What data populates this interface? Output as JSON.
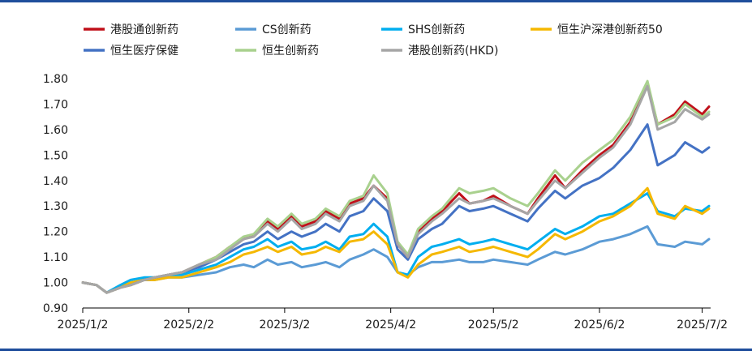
{
  "chart_data": {
    "type": "line",
    "title": "",
    "xlabel": "",
    "ylabel": "",
    "ylim": [
      0.9,
      1.8
    ],
    "yticks": [
      "0.90",
      "1.00",
      "1.10",
      "1.20",
      "1.30",
      "1.40",
      "1.50",
      "1.60",
      "1.70",
      "1.80"
    ],
    "xticks": [
      "2025/1/2",
      "2025/2/2",
      "2025/3/2",
      "2025/4/2",
      "2025/5/2",
      "2025/6/2",
      "2025/7/2"
    ],
    "grid": false,
    "legend_position": "top",
    "x": [
      "2025/1/2",
      "2025/1/6",
      "2025/1/9",
      "2025/1/13",
      "2025/1/16",
      "2025/1/20",
      "2025/1/23",
      "2025/1/27",
      "2025/1/31",
      "2025/2/5",
      "2025/2/10",
      "2025/2/14",
      "2025/2/18",
      "2025/2/21",
      "2025/2/25",
      "2025/2/28",
      "2025/3/4",
      "2025/3/7",
      "2025/3/11",
      "2025/3/14",
      "2025/3/18",
      "2025/3/21",
      "2025/3/25",
      "2025/3/28",
      "2025/4/1",
      "2025/4/4",
      "2025/4/7",
      "2025/4/10",
      "2025/4/14",
      "2025/4/17",
      "2025/4/22",
      "2025/4/25",
      "2025/4/29",
      "2025/5/2",
      "2025/5/7",
      "2025/5/12",
      "2025/5/15",
      "2025/5/20",
      "2025/5/23",
      "2025/5/28",
      "2025/6/2",
      "2025/6/6",
      "2025/6/11",
      "2025/6/16",
      "2025/6/19",
      "2025/6/24",
      "2025/6/27",
      "2025/7/2",
      "2025/7/4"
    ],
    "series": [
      {
        "name": "港股通创新药",
        "color": "#c0101a",
        "values": [
          1.0,
          0.99,
          0.96,
          0.98,
          0.99,
          1.01,
          1.02,
          1.03,
          1.04,
          1.07,
          1.1,
          1.14,
          1.17,
          1.19,
          1.24,
          1.21,
          1.26,
          1.22,
          1.24,
          1.28,
          1.25,
          1.31,
          1.33,
          1.38,
          1.33,
          1.15,
          1.1,
          1.2,
          1.25,
          1.28,
          1.35,
          1.31,
          1.32,
          1.34,
          1.3,
          1.27,
          1.33,
          1.42,
          1.37,
          1.44,
          1.5,
          1.54,
          1.63,
          1.78,
          1.62,
          1.66,
          1.71,
          1.66,
          1.69
        ]
      },
      {
        "name": "CS创新药",
        "color": "#5b9bd5",
        "values": [
          1.0,
          0.99,
          0.96,
          0.98,
          1.0,
          1.01,
          1.01,
          1.02,
          1.02,
          1.03,
          1.04,
          1.06,
          1.07,
          1.06,
          1.09,
          1.07,
          1.08,
          1.06,
          1.07,
          1.08,
          1.06,
          1.09,
          1.11,
          1.13,
          1.1,
          1.04,
          1.03,
          1.06,
          1.08,
          1.08,
          1.09,
          1.08,
          1.08,
          1.09,
          1.08,
          1.07,
          1.09,
          1.12,
          1.11,
          1.13,
          1.16,
          1.17,
          1.19,
          1.22,
          1.15,
          1.14,
          1.16,
          1.15,
          1.17
        ]
      },
      {
        "name": "SHS创新药",
        "color": "#00aeef",
        "values": [
          1.0,
          0.99,
          0.96,
          0.99,
          1.01,
          1.02,
          1.02,
          1.03,
          1.03,
          1.05,
          1.07,
          1.1,
          1.13,
          1.14,
          1.17,
          1.14,
          1.16,
          1.13,
          1.14,
          1.16,
          1.13,
          1.18,
          1.19,
          1.23,
          1.18,
          1.04,
          1.03,
          1.1,
          1.14,
          1.15,
          1.17,
          1.15,
          1.16,
          1.17,
          1.15,
          1.13,
          1.16,
          1.21,
          1.19,
          1.22,
          1.26,
          1.27,
          1.31,
          1.35,
          1.28,
          1.26,
          1.29,
          1.28,
          1.3
        ]
      },
      {
        "name": "恒生沪深港创新药50",
        "color": "#f5b800",
        "values": [
          1.0,
          0.99,
          0.96,
          0.98,
          1.0,
          1.01,
          1.01,
          1.02,
          1.02,
          1.04,
          1.06,
          1.08,
          1.11,
          1.12,
          1.14,
          1.12,
          1.14,
          1.11,
          1.12,
          1.14,
          1.12,
          1.16,
          1.17,
          1.2,
          1.15,
          1.04,
          1.02,
          1.07,
          1.11,
          1.12,
          1.14,
          1.12,
          1.13,
          1.14,
          1.12,
          1.1,
          1.13,
          1.19,
          1.17,
          1.2,
          1.24,
          1.26,
          1.3,
          1.37,
          1.27,
          1.25,
          1.3,
          1.27,
          1.29
        ]
      },
      {
        "name": "恒生医疗保健",
        "color": "#4472c4",
        "values": [
          1.0,
          0.99,
          0.96,
          0.98,
          0.99,
          1.01,
          1.02,
          1.03,
          1.04,
          1.06,
          1.09,
          1.12,
          1.15,
          1.16,
          1.2,
          1.17,
          1.2,
          1.18,
          1.2,
          1.23,
          1.2,
          1.26,
          1.28,
          1.33,
          1.28,
          1.13,
          1.09,
          1.17,
          1.21,
          1.23,
          1.3,
          1.28,
          1.29,
          1.3,
          1.27,
          1.24,
          1.29,
          1.36,
          1.33,
          1.38,
          1.41,
          1.45,
          1.52,
          1.62,
          1.46,
          1.5,
          1.55,
          1.51,
          1.53
        ]
      },
      {
        "name": "恒生创新药",
        "color": "#a9d18e",
        "values": [
          1.0,
          0.99,
          0.96,
          0.98,
          0.99,
          1.01,
          1.02,
          1.03,
          1.04,
          1.07,
          1.1,
          1.14,
          1.18,
          1.19,
          1.25,
          1.22,
          1.27,
          1.23,
          1.25,
          1.29,
          1.26,
          1.32,
          1.34,
          1.42,
          1.35,
          1.16,
          1.11,
          1.21,
          1.26,
          1.29,
          1.37,
          1.35,
          1.36,
          1.37,
          1.33,
          1.3,
          1.35,
          1.44,
          1.4,
          1.47,
          1.52,
          1.56,
          1.65,
          1.79,
          1.62,
          1.65,
          1.7,
          1.65,
          1.67
        ]
      },
      {
        "name": "港股创新药(HKD)",
        "color": "#a6a6a6",
        "values": [
          1.0,
          0.99,
          0.96,
          0.98,
          0.99,
          1.01,
          1.02,
          1.03,
          1.04,
          1.07,
          1.09,
          1.13,
          1.17,
          1.18,
          1.23,
          1.2,
          1.25,
          1.21,
          1.23,
          1.27,
          1.24,
          1.3,
          1.32,
          1.38,
          1.32,
          1.15,
          1.1,
          1.19,
          1.24,
          1.27,
          1.33,
          1.31,
          1.32,
          1.33,
          1.3,
          1.27,
          1.32,
          1.4,
          1.37,
          1.43,
          1.49,
          1.53,
          1.62,
          1.77,
          1.6,
          1.63,
          1.68,
          1.64,
          1.66
        ]
      }
    ]
  }
}
